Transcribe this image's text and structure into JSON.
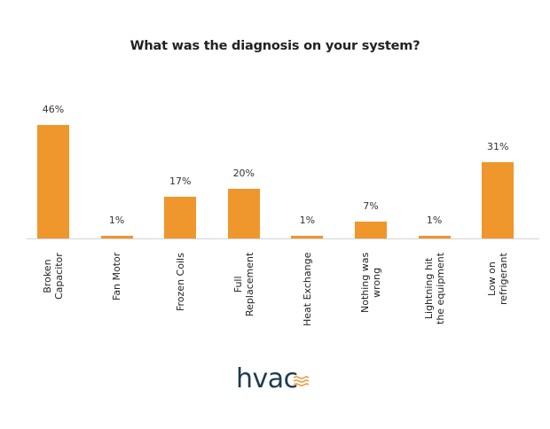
{
  "chart_data": {
    "type": "bar",
    "title": "What was the diagnosis on your system?",
    "xlabel": "",
    "ylabel": "",
    "ylim": [
      0,
      50
    ],
    "grid": false,
    "legend": null,
    "categories": [
      "Broken Capacitor",
      "Fan Motor",
      "Frozen Coils",
      "Full Replacement",
      "Heat Exchange",
      "Nothing was wrong",
      "Lightning hit the equipment",
      "Low on refrigerant"
    ],
    "values": [
      46,
      1,
      17,
      20,
      1,
      7,
      1,
      31
    ],
    "value_labels": [
      "46%",
      "1%",
      "17%",
      "20%",
      "1%",
      "7%",
      "1%",
      "31%"
    ],
    "bar_color": "#ef962d"
  },
  "labels": [
    [
      "Broken",
      "Capacitor"
    ],
    [
      "Fan Motor"
    ],
    [
      "Frozen Coils"
    ],
    [
      "Full",
      "Replacement"
    ],
    [
      "Heat Exchange"
    ],
    [
      "Nothing was",
      "wrong"
    ],
    [
      "Lightning hit",
      "the equipment"
    ],
    [
      "Low on",
      "refrigerant"
    ]
  ],
  "logo": {
    "text": "hvac",
    "text_color": "#1d3b4f",
    "accent_color": "#ef962d"
  }
}
